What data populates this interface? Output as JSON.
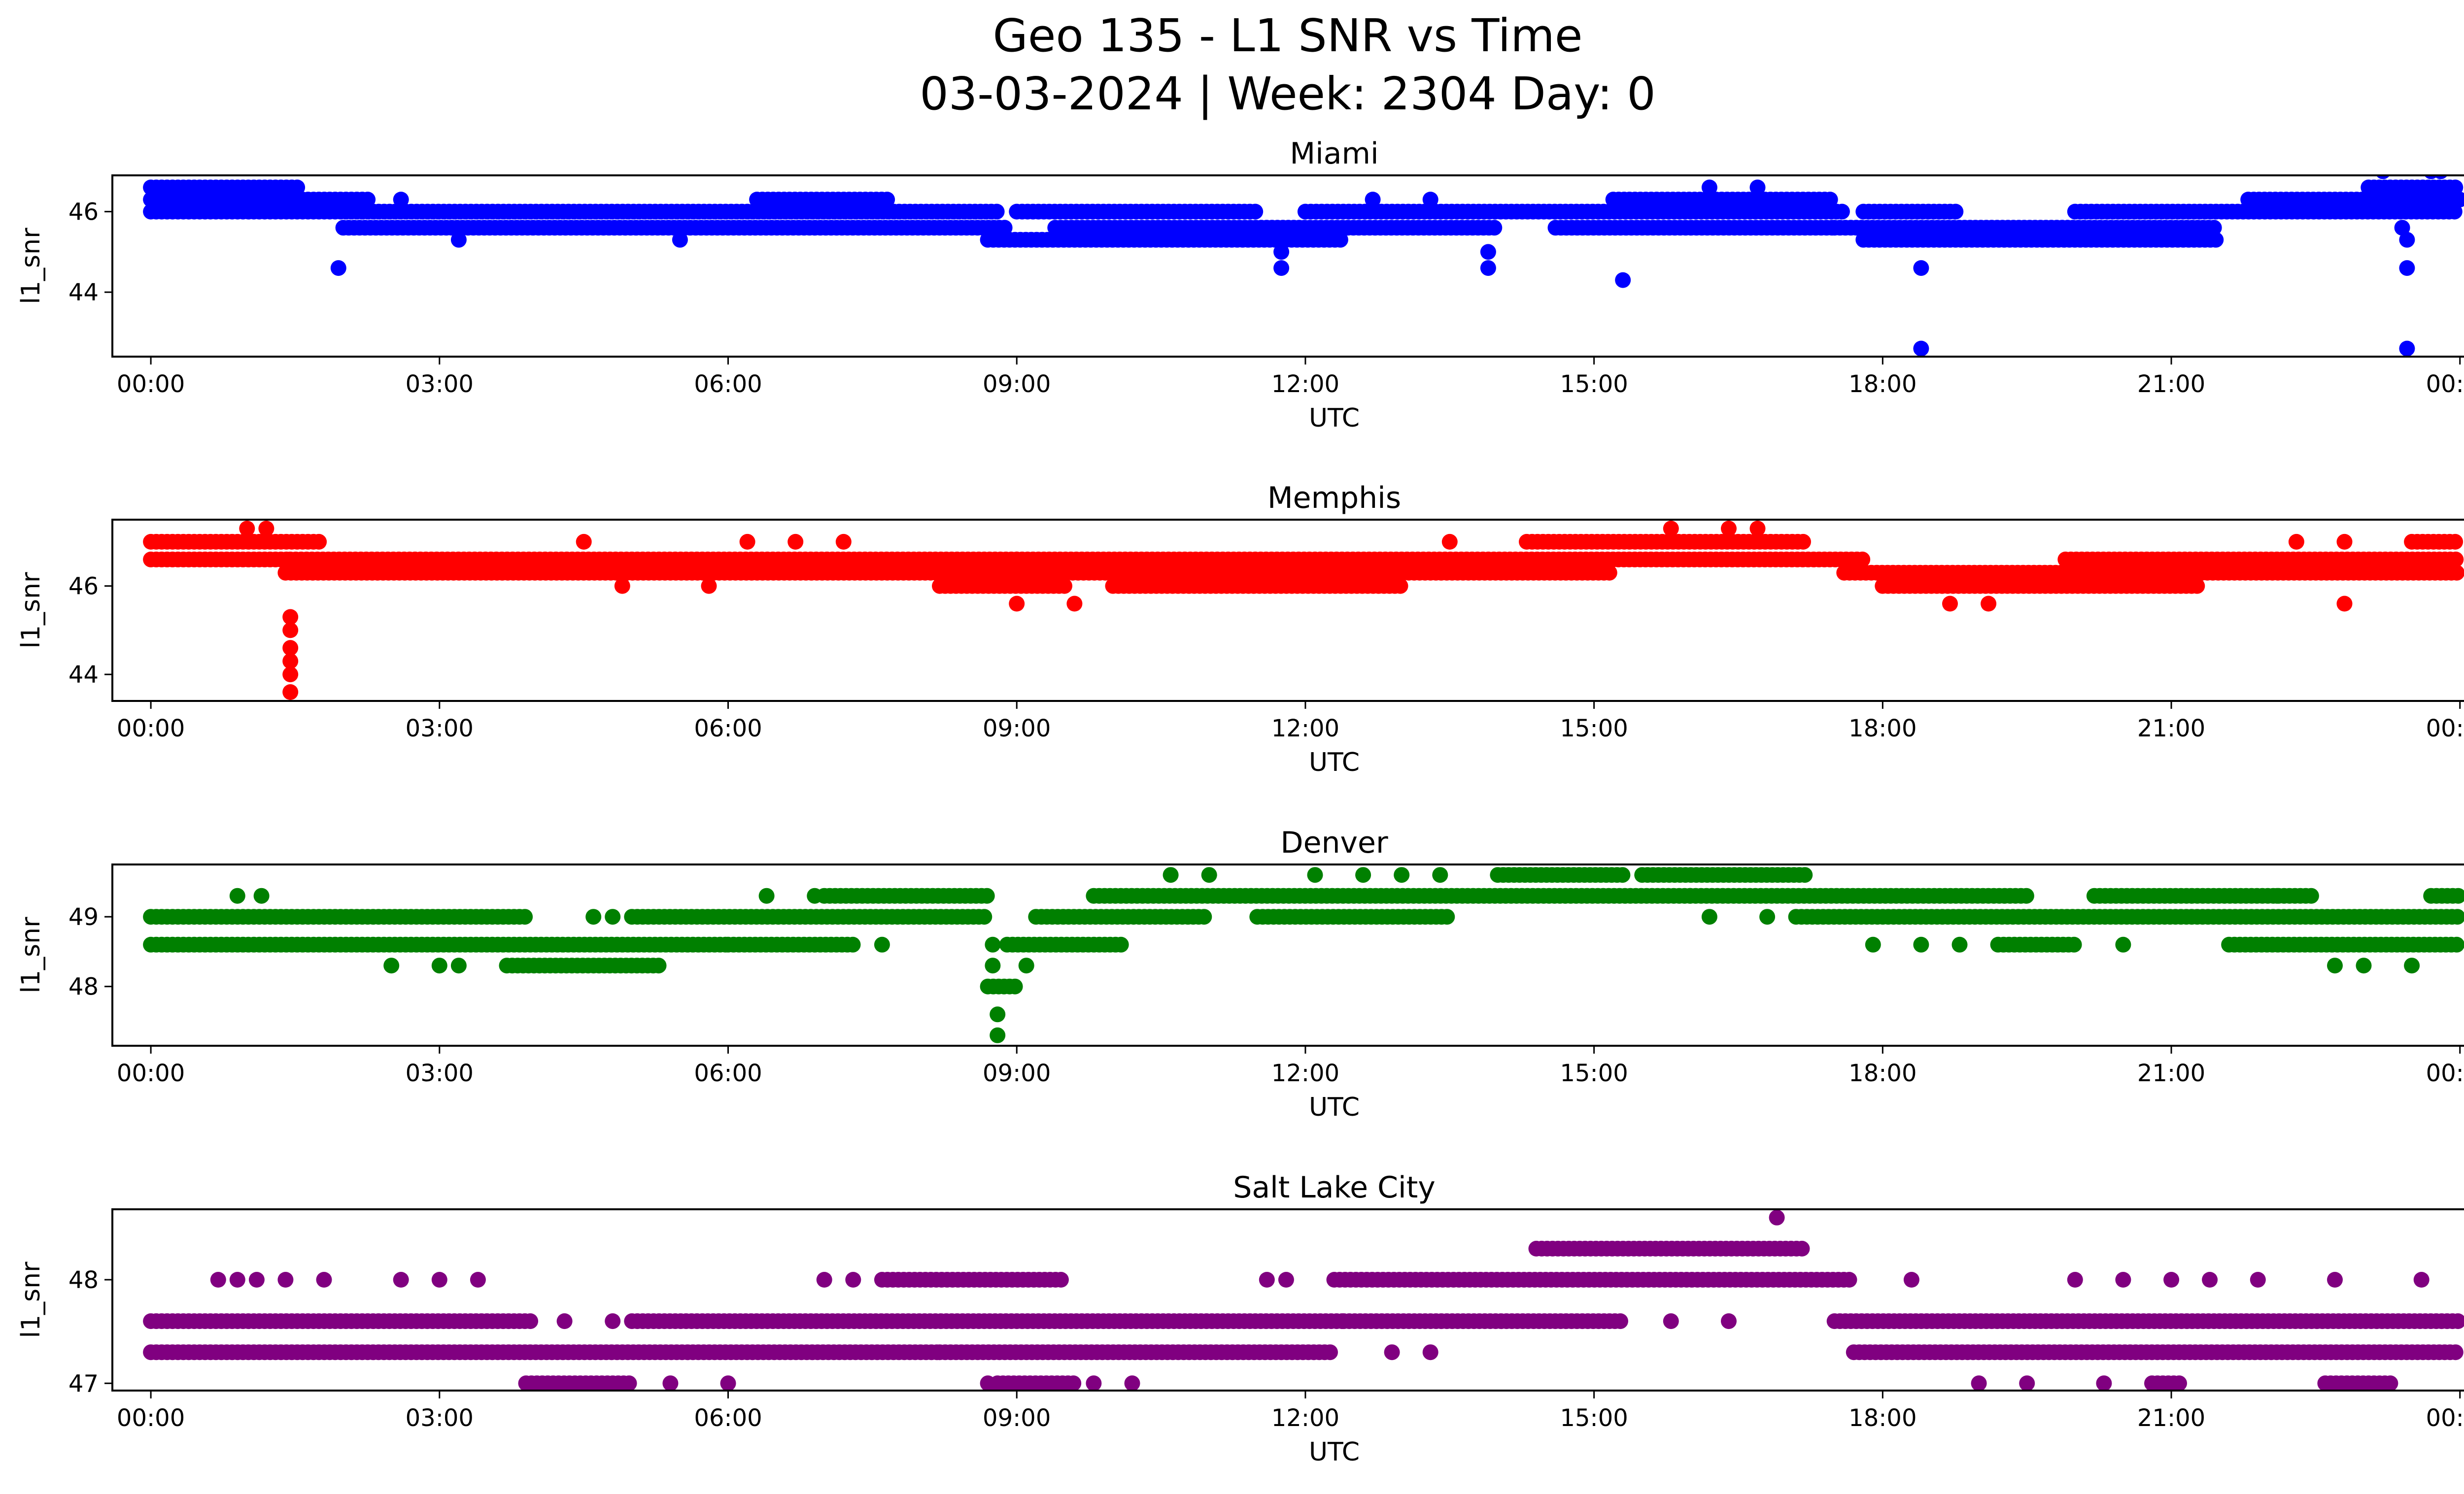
{
  "chart_data": [
    {
      "type": "scatter",
      "title": "Miami",
      "xlabel": "UTC",
      "ylabel": "l1_snr",
      "color": "#0000ff",
      "xlim": [
        -0.4,
        25.0
      ],
      "ylim": [
        42.4,
        46.9
      ],
      "xticks": [
        0,
        3,
        6,
        9,
        12,
        15,
        18,
        21,
        24
      ],
      "xtick_labels": [
        "00:00",
        "03:00",
        "06:00",
        "09:00",
        "12:00",
        "15:00",
        "18:00",
        "21:00",
        "00:00"
      ],
      "yticks": [
        44,
        46
      ],
      "ytick_labels": [
        "44",
        "46"
      ],
      "bands": [
        {
          "y": 46.6,
          "segments": [
            [
              0.0,
              1.55
            ],
            [
              23.05,
              24.0
            ]
          ]
        },
        {
          "y": 46.3,
          "segments": [
            [
              0.0,
              2.3
            ],
            [
              6.3,
              7.7
            ],
            [
              15.2,
              17.5
            ],
            [
              21.8,
              24.0
            ]
          ]
        },
        {
          "y": 46.0,
          "segments": [
            [
              0.0,
              2.2
            ],
            [
              2.2,
              8.8
            ],
            [
              9.0,
              11.5
            ],
            [
              12.0,
              17.6
            ],
            [
              17.8,
              18.8
            ],
            [
              20.0,
              24.0
            ]
          ]
        },
        {
          "y": 45.6,
          "segments": [
            [
              2.0,
              8.9
            ],
            [
              9.4,
              14.0
            ],
            [
              14.6,
              17.5
            ],
            [
              17.5,
              21.5
            ]
          ]
        },
        {
          "y": 45.3,
          "segments": [
            [
              8.7,
              11.7
            ],
            [
              11.8,
              12.4
            ],
            [
              17.8,
              21.5
            ]
          ]
        }
      ],
      "outliers": [
        {
          "x": 1.95,
          "y": 44.6
        },
        {
          "x": 11.75,
          "y": 45.0
        },
        {
          "x": 11.75,
          "y": 44.6
        },
        {
          "x": 13.9,
          "y": 45.0
        },
        {
          "x": 13.9,
          "y": 44.6
        },
        {
          "x": 15.3,
          "y": 44.3
        },
        {
          "x": 18.4,
          "y": 44.6
        },
        {
          "x": 18.4,
          "y": 42.6
        },
        {
          "x": 23.4,
          "y": 45.6
        },
        {
          "x": 23.45,
          "y": 45.3
        },
        {
          "x": 23.45,
          "y": 44.6
        },
        {
          "x": 23.45,
          "y": 42.6
        },
        {
          "x": 23.2,
          "y": 47.0
        },
        {
          "x": 23.7,
          "y": 47.0
        },
        {
          "x": 23.8,
          "y": 47.0
        },
        {
          "x": 2.6,
          "y": 46.3
        },
        {
          "x": 3.2,
          "y": 45.3
        },
        {
          "x": 5.5,
          "y": 45.3
        },
        {
          "x": 12.7,
          "y": 46.3
        },
        {
          "x": 13.3,
          "y": 46.3
        },
        {
          "x": 16.2,
          "y": 46.6
        },
        {
          "x": 16.7,
          "y": 46.6
        }
      ]
    },
    {
      "type": "scatter",
      "title": "Memphis",
      "xlabel": "UTC",
      "ylabel": "l1_snr",
      "color": "#ff0000",
      "xlim": [
        -0.4,
        25.0
      ],
      "ylim": [
        43.4,
        47.5
      ],
      "xticks": [
        0,
        3,
        6,
        9,
        12,
        15,
        18,
        21,
        24
      ],
      "xtick_labels": [
        "00:00",
        "03:00",
        "06:00",
        "09:00",
        "12:00",
        "15:00",
        "18:00",
        "21:00",
        "00:00"
      ],
      "yticks": [
        44,
        46
      ],
      "ytick_labels": [
        "44",
        "46"
      ],
      "bands": [
        {
          "y": 47.0,
          "segments": [
            [
              0.0,
              1.75
            ],
            [
              14.3,
              17.2
            ],
            [
              23.5,
              24.0
            ]
          ]
        },
        {
          "y": 46.6,
          "segments": [
            [
              0.0,
              1.45
            ],
            [
              1.45,
              9.0
            ],
            [
              9.0,
              17.8
            ],
            [
              19.9,
              24.0
            ]
          ]
        },
        {
          "y": 46.3,
          "segments": [
            [
              1.4,
              9.3
            ],
            [
              9.3,
              15.2
            ],
            [
              17.6,
              24.0
            ]
          ]
        },
        {
          "y": 46.0,
          "segments": [
            [
              8.2,
              9.5
            ],
            [
              10.0,
              13.0
            ],
            [
              18.0,
              21.3
            ]
          ]
        }
      ],
      "outliers": [
        {
          "x": 1.45,
          "y": 45.3
        },
        {
          "x": 1.45,
          "y": 45.0
        },
        {
          "x": 1.45,
          "y": 44.6
        },
        {
          "x": 1.45,
          "y": 44.3
        },
        {
          "x": 1.45,
          "y": 44.0
        },
        {
          "x": 1.45,
          "y": 43.6
        },
        {
          "x": 1.0,
          "y": 47.3
        },
        {
          "x": 1.2,
          "y": 47.3
        },
        {
          "x": 4.5,
          "y": 47.0
        },
        {
          "x": 6.2,
          "y": 47.0
        },
        {
          "x": 6.7,
          "y": 47.0
        },
        {
          "x": 7.2,
          "y": 47.0
        },
        {
          "x": 13.5,
          "y": 47.0
        },
        {
          "x": 15.8,
          "y": 47.3
        },
        {
          "x": 16.4,
          "y": 47.3
        },
        {
          "x": 16.7,
          "y": 47.3
        },
        {
          "x": 4.9,
          "y": 46.0
        },
        {
          "x": 5.8,
          "y": 46.0
        },
        {
          "x": 9.0,
          "y": 45.6
        },
        {
          "x": 9.6,
          "y": 45.6
        },
        {
          "x": 18.7,
          "y": 45.6
        },
        {
          "x": 19.1,
          "y": 45.6
        },
        {
          "x": 22.8,
          "y": 45.6
        },
        {
          "x": 22.3,
          "y": 47.0
        },
        {
          "x": 22.8,
          "y": 47.0
        }
      ]
    },
    {
      "type": "scatter",
      "title": "Denver",
      "xlabel": "UTC",
      "ylabel": "l1_snr",
      "color": "#008000",
      "xlim": [
        -0.4,
        25.0
      ],
      "ylim": [
        47.15,
        49.75
      ],
      "xticks": [
        0,
        3,
        6,
        9,
        12,
        15,
        18,
        21,
        24
      ],
      "xtick_labels": [
        "00:00",
        "03:00",
        "06:00",
        "09:00",
        "12:00",
        "15:00",
        "18:00",
        "21:00",
        "00:00"
      ],
      "yticks": [
        48,
        49
      ],
      "ytick_labels": [
        "48",
        "49"
      ],
      "bands": [
        {
          "y": 49.6,
          "segments": [
            [
              14.0,
              15.3
            ],
            [
              15.5,
              17.2
            ]
          ]
        },
        {
          "y": 49.3,
          "segments": [
            [
              7.0,
              8.7
            ],
            [
              9.8,
              16.0
            ],
            [
              16.0,
              19.5
            ],
            [
              20.2,
              22.5
            ],
            [
              23.7,
              24.0
            ]
          ]
        },
        {
          "y": 49.0,
          "segments": [
            [
              0.0,
              3.9
            ],
            [
              5.0,
              8.7
            ],
            [
              9.2,
              11.0
            ],
            [
              11.5,
              13.5
            ],
            [
              17.1,
              24.0
            ]
          ]
        },
        {
          "y": 48.6,
          "segments": [
            [
              0.0,
              6.0
            ],
            [
              6.0,
              7.3
            ],
            [
              8.9,
              10.1
            ],
            [
              19.2,
              20.0
            ],
            [
              21.6,
              24.0
            ]
          ]
        },
        {
          "y": 48.3,
          "segments": [
            [
              3.7,
              5.3
            ]
          ]
        },
        {
          "y": 48.0,
          "segments": [
            [
              8.7,
              9.0
            ]
          ]
        }
      ],
      "outliers": [
        {
          "x": 0.9,
          "y": 49.3
        },
        {
          "x": 1.15,
          "y": 49.3
        },
        {
          "x": 6.4,
          "y": 49.3
        },
        {
          "x": 6.9,
          "y": 49.3
        },
        {
          "x": 10.6,
          "y": 49.6
        },
        {
          "x": 11.0,
          "y": 49.6
        },
        {
          "x": 12.1,
          "y": 49.6
        },
        {
          "x": 12.6,
          "y": 49.6
        },
        {
          "x": 13.0,
          "y": 49.6
        },
        {
          "x": 13.4,
          "y": 49.6
        },
        {
          "x": 2.5,
          "y": 48.3
        },
        {
          "x": 3.0,
          "y": 48.3
        },
        {
          "x": 3.2,
          "y": 48.3
        },
        {
          "x": 7.6,
          "y": 48.6
        },
        {
          "x": 8.75,
          "y": 48.6
        },
        {
          "x": 8.75,
          "y": 48.3
        },
        {
          "x": 8.8,
          "y": 47.6
        },
        {
          "x": 8.8,
          "y": 47.3
        },
        {
          "x": 9.1,
          "y": 48.3
        },
        {
          "x": 17.9,
          "y": 48.6
        },
        {
          "x": 18.4,
          "y": 48.6
        },
        {
          "x": 18.8,
          "y": 48.6
        },
        {
          "x": 20.5,
          "y": 48.6
        },
        {
          "x": 22.7,
          "y": 48.3
        },
        {
          "x": 23.0,
          "y": 48.3
        },
        {
          "x": 23.5,
          "y": 48.3
        },
        {
          "x": 22.1,
          "y": 49.3
        },
        {
          "x": 4.6,
          "y": 49.0
        },
        {
          "x": 4.8,
          "y": 49.0
        },
        {
          "x": 16.2,
          "y": 49.0
        },
        {
          "x": 16.8,
          "y": 49.0
        }
      ]
    },
    {
      "type": "scatter",
      "title": "Salt Lake City",
      "xlabel": "UTC",
      "ylabel": "l1_snr",
      "color": "#800080",
      "xlim": [
        -0.4,
        25.0
      ],
      "ylim": [
        46.93,
        48.68
      ],
      "xticks": [
        0,
        3,
        6,
        9,
        12,
        15,
        18,
        21,
        24
      ],
      "xtick_labels": [
        "00:00",
        "03:00",
        "06:00",
        "09:00",
        "12:00",
        "15:00",
        "18:00",
        "21:00",
        "00:00"
      ],
      "yticks": [
        47,
        48
      ],
      "ytick_labels": [
        "47",
        "48"
      ],
      "bands": [
        {
          "y": 48.3,
          "segments": [
            [
              14.4,
              17.2
            ]
          ]
        },
        {
          "y": 48.0,
          "segments": [
            [
              12.3,
              17.7
            ],
            [
              7.6,
              9.5
            ]
          ]
        },
        {
          "y": 47.6,
          "segments": [
            [
              0.0,
              4.0
            ],
            [
              5.0,
              12.4
            ],
            [
              12.4,
              15.3
            ],
            [
              17.5,
              24.0
            ]
          ]
        },
        {
          "y": 47.3,
          "segments": [
            [
              0.0,
              8.2
            ],
            [
              8.2,
              12.3
            ],
            [
              17.7,
              24.0
            ]
          ]
        },
        {
          "y": 47.0,
          "segments": [
            [
              3.9,
              5.0
            ],
            [
              8.8,
              9.6
            ],
            [
              20.8,
              21.1
            ],
            [
              22.6,
              23.3
            ]
          ]
        }
      ],
      "outliers": [
        {
          "x": 16.9,
          "y": 48.6
        },
        {
          "x": 0.7,
          "y": 48.0
        },
        {
          "x": 0.9,
          "y": 48.0
        },
        {
          "x": 1.1,
          "y": 48.0
        },
        {
          "x": 1.4,
          "y": 48.0
        },
        {
          "x": 1.8,
          "y": 48.0
        },
        {
          "x": 2.6,
          "y": 48.0
        },
        {
          "x": 3.0,
          "y": 48.0
        },
        {
          "x": 3.4,
          "y": 48.0
        },
        {
          "x": 7.0,
          "y": 48.0
        },
        {
          "x": 7.3,
          "y": 48.0
        },
        {
          "x": 11.6,
          "y": 48.0
        },
        {
          "x": 11.8,
          "y": 48.0
        },
        {
          "x": 18.3,
          "y": 48.0
        },
        {
          "x": 20.0,
          "y": 48.0
        },
        {
          "x": 20.5,
          "y": 48.0
        },
        {
          "x": 21.0,
          "y": 48.0
        },
        {
          "x": 21.4,
          "y": 48.0
        },
        {
          "x": 21.9,
          "y": 48.0
        },
        {
          "x": 22.7,
          "y": 48.0
        },
        {
          "x": 23.6,
          "y": 48.0
        },
        {
          "x": 5.4,
          "y": 47.0
        },
        {
          "x": 6.0,
          "y": 47.0
        },
        {
          "x": 8.7,
          "y": 47.0
        },
        {
          "x": 9.8,
          "y": 47.0
        },
        {
          "x": 10.2,
          "y": 47.0
        },
        {
          "x": 19.0,
          "y": 47.0
        },
        {
          "x": 19.5,
          "y": 47.0
        },
        {
          "x": 20.3,
          "y": 47.0
        },
        {
          "x": 12.9,
          "y": 47.3
        },
        {
          "x": 13.3,
          "y": 47.3
        },
        {
          "x": 4.3,
          "y": 47.6
        },
        {
          "x": 4.8,
          "y": 47.6
        },
        {
          "x": 15.8,
          "y": 47.6
        },
        {
          "x": 16.4,
          "y": 47.6
        }
      ]
    }
  ],
  "figure": {
    "title_line1": "Geo 135 - L1 SNR vs Time",
    "title_line2": "03-03-2024 | Week: 2304 Day: 0"
  }
}
